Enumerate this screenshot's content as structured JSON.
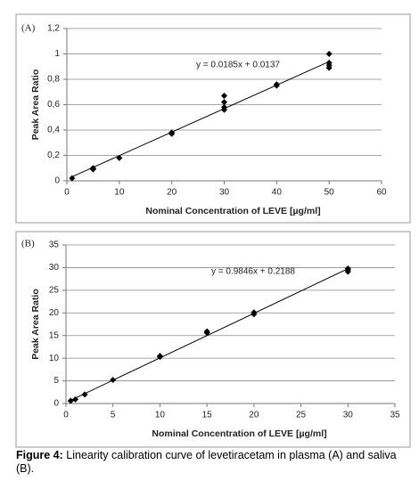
{
  "chart_data": [
    {
      "type": "scatter",
      "panel": "(A)",
      "annotation": "y = 0.0185x + 0.0137",
      "x_label": "Nominal Concentration of LEVE [µg/ml]",
      "y_label": "Peak Area Ratio",
      "x": [
        1,
        5,
        5,
        5,
        10,
        20,
        20,
        30,
        30,
        30,
        30,
        40,
        40,
        50,
        50,
        50,
        50
      ],
      "values": [
        0.02,
        0.09,
        0.1,
        0.095,
        0.18,
        0.37,
        0.38,
        0.56,
        0.58,
        0.62,
        0.67,
        0.75,
        0.76,
        0.89,
        0.91,
        0.93,
        1.0
      ],
      "color": "#000000",
      "trendline": {
        "x": [
          1,
          50
        ],
        "y": [
          0.032,
          0.939
        ]
      },
      "xlim": [
        0,
        60
      ],
      "xticks": [
        0,
        10,
        20,
        30,
        40,
        50,
        60
      ],
      "ylim": [
        0,
        1.2
      ],
      "yticks": [
        0,
        {
          "value": 0.2,
          "label": "0,2"
        },
        {
          "value": 0.4,
          "label": "0,4"
        },
        {
          "value": 0.6,
          "label": "0,6"
        },
        {
          "value": 0.8,
          "label": "0,8"
        },
        1,
        {
          "value": 1.2,
          "label": "1,2"
        }
      ],
      "grid": true
    },
    {
      "type": "scatter",
      "panel": "(B)",
      "annotation": "y = 0.9846x + 0.2188",
      "x_label": "Nominal Concentration of LEVE [µg/ml]",
      "y_label": "Peak Area Ratio",
      "x": [
        0.5,
        1,
        2,
        5,
        10,
        10,
        15,
        15,
        20,
        20,
        30,
        30,
        30
      ],
      "values": [
        0.6,
        0.9,
        2.0,
        5.2,
        10.3,
        10.5,
        15.6,
        15.9,
        19.7,
        20.1,
        29.1,
        29.5,
        29.8
      ],
      "color": "#000000",
      "trendline": {
        "x": [
          0.5,
          30
        ],
        "y": [
          0.71,
          29.76
        ]
      },
      "xlim": [
        0,
        35
      ],
      "xticks": [
        0,
        5,
        10,
        15,
        20,
        25,
        30,
        35
      ],
      "ylim": [
        0,
        35
      ],
      "yticks": [
        0,
        5,
        10,
        15,
        20,
        25,
        30,
        35
      ],
      "grid": true
    }
  ],
  "caption": {
    "label": "Figure 4:",
    "text": " Linearity calibration curve of levetiracetam in plasma (A) and saliva (B)."
  }
}
